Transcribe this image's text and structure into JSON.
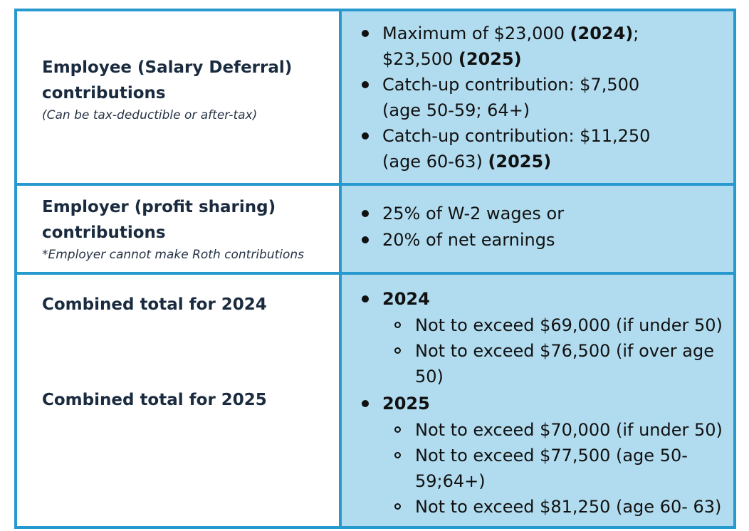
{
  "rows": [
    {
      "heading_lines": [
        "Employee (Salary Deferral)",
        "contributions"
      ],
      "note": "(Can be tax-deductible or after-tax)",
      "bullets": [
        {
          "line1_prefix": "Maximum of $23,000 ",
          "line1_bold": "(2024)",
          "line1_suffix": ";",
          "line2_prefix": "$23,500 ",
          "line2_bold": "(2025)"
        },
        {
          "line1": "Catch-up contribution: $7,500",
          "line2": "(age 50-59; 64+)"
        },
        {
          "line1": "Catch-up contribution: $11,250",
          "line2_prefix": "(age 60-63) ",
          "line2_bold": "(2025)"
        }
      ]
    },
    {
      "heading_lines": [
        "Employer (profit sharing)",
        "contributions"
      ],
      "note": "*Employer cannot make Roth contributions",
      "bullets": [
        {
          "line1": "25% of W-2 wages or"
        },
        {
          "line1": "20% of net earnings"
        }
      ]
    },
    {
      "headings": [
        "Combined total for 2024",
        "Combined total for 2025"
      ],
      "groups": [
        {
          "year": "2024",
          "items": [
            {
              "line1": "Not to exceed $69,000 (if under 50)"
            },
            {
              "line1": "Not to exceed $76,500 (if over age",
              "line2": "50)"
            }
          ]
        },
        {
          "year": "2025",
          "items": [
            {
              "line1": "Not to exceed $70,000 (if under 50)"
            },
            {
              "line1": "Not to exceed $77,500 (age 50-",
              "line2": "59;64+)"
            },
            {
              "line1": "Not to exceed $81,250 (age 60- 63)"
            }
          ]
        }
      ]
    }
  ],
  "colors": {
    "border": "#2899cf",
    "right_fill": "#b1dcef",
    "heading_text": "#1a2b3f"
  }
}
